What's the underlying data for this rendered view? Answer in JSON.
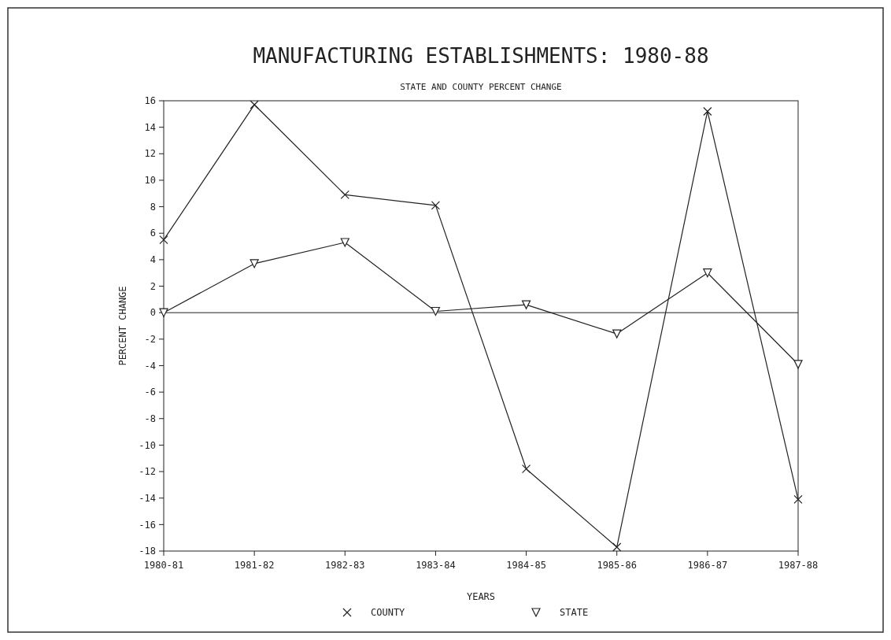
{
  "chart_data": {
    "type": "line",
    "title": "MANUFACTURING ESTABLISHMENTS: 1980-88",
    "subtitle": "STATE AND COUNTY PERCENT CHANGE",
    "xlabel": "YEARS",
    "ylabel": "PERCENT CHANGE",
    "categories": [
      "1980-81",
      "1981-82",
      "1982-83",
      "1983-84",
      "1984-85",
      "1985-86",
      "1986-87",
      "1987-88"
    ],
    "series": [
      {
        "name": "COUNTY",
        "color": "#222222",
        "marker": "cross",
        "values": [
          5.5,
          15.7,
          8.9,
          8.1,
          -11.8,
          -17.7,
          15.2,
          -14.1
        ]
      },
      {
        "name": "STATE",
        "color": "#222222",
        "marker": "triangle",
        "values": [
          0,
          3.7,
          5.3,
          0.1,
          0.6,
          -1.6,
          3.0,
          -3.9
        ]
      }
    ],
    "ylim": [
      -18,
      16
    ],
    "yticks": [
      -18,
      -16,
      -14,
      -12,
      -10,
      -8,
      -6,
      -4,
      -2,
      0,
      2,
      4,
      6,
      8,
      10,
      12,
      14,
      16
    ],
    "ref_lines": [
      {
        "axis": "y",
        "value": 0,
        "color": "#222222"
      }
    ],
    "grid": false,
    "legend": "bottom",
    "line_style": "solid"
  }
}
